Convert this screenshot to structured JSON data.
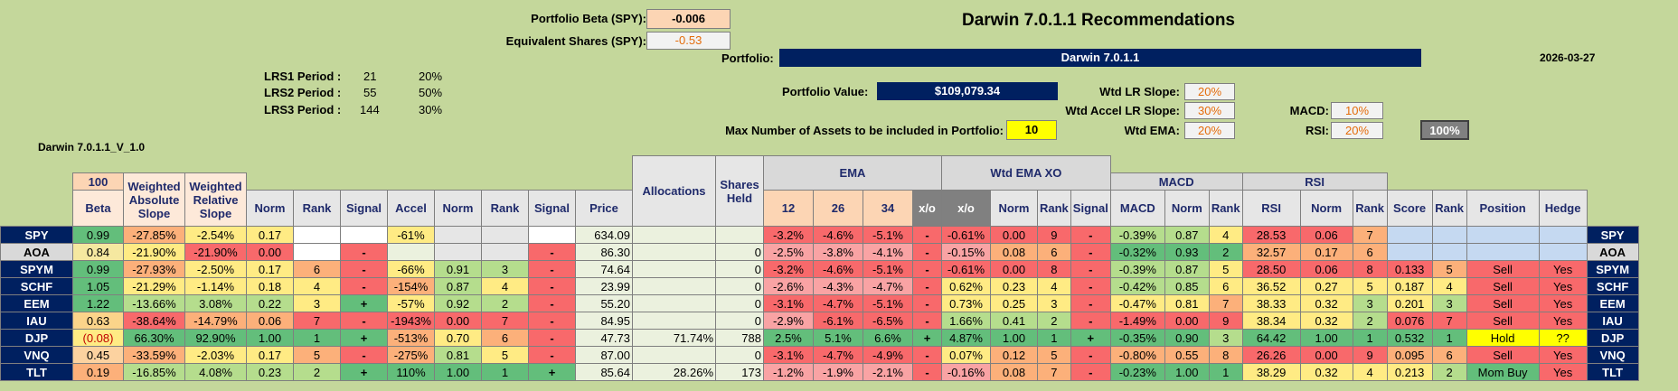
{
  "colors": {
    "background": "#c4d79b",
    "navy": "#002060",
    "yellow": "#ffff00",
    "green": "#63be7b",
    "red": "#f8696b",
    "orange_text": "#e46c0a"
  },
  "top": {
    "portfolio_beta_label": "Portfolio Beta (SPY):",
    "portfolio_beta_value": "-0.006",
    "equiv_shares_label": "Equivalent Shares (SPY):",
    "equiv_shares_value": "-0.53",
    "title": "Darwin 7.0.1.1 Recommendations",
    "portfolio_label": "Portfolio:",
    "portfolio_name": "Darwin 7.0.1.1",
    "date": "2026-03-27",
    "portfolio_value_label": "Portfolio Value:",
    "portfolio_value": "$109,079.34",
    "max_assets_label": "Max Number of Assets to be included in Portfolio:",
    "max_assets_value": "10",
    "version_label": "Darwin 7.0.1.1_V_1.0"
  },
  "lrs": [
    {
      "label": "LRS1 Period :",
      "period": "21",
      "pct": "20%"
    },
    {
      "label": "LRS2 Period :",
      "period": "55",
      "pct": "50%"
    },
    {
      "label": "LRS3 Period :",
      "period": "144",
      "pct": "30%"
    }
  ],
  "weights": {
    "wtd_lr_slope_label": "Wtd LR Slope:",
    "wtd_lr_slope": "20%",
    "wtd_accel_label": "Wtd Accel LR Slope:",
    "wtd_accel": "30%",
    "wtd_ema_label": "Wtd EMA:",
    "wtd_ema": "20%",
    "macd_label": "MACD:",
    "macd": "10%",
    "rsi_label": "RSI:",
    "rsi": "20%",
    "total": "100%"
  },
  "headers": {
    "beta_top": "100",
    "allocations": "Allocations",
    "shares_held": "Shares Held",
    "ema_group": "EMA",
    "wtd_ema_xo_group": "Wtd EMA XO",
    "macd_group": "MACD",
    "rsi_group": "RSI",
    "cols": [
      "Beta",
      "Weighted Absolute Slope",
      "Weighted Relative Slope",
      "Norm",
      "Rank",
      "Signal",
      "Accel",
      "Norm",
      "Rank",
      "Signal",
      "Price",
      "12",
      "26",
      "34",
      "x/o",
      "x/o",
      "Norm",
      "Rank",
      "Signal",
      "MACD",
      "Norm",
      "Rank",
      "RSI",
      "Norm",
      "Rank",
      "Score",
      "Rank",
      "Position",
      "Hedge"
    ]
  },
  "rows": [
    {
      "ticker": "SPY",
      "beta": "0.99",
      "was": "-27.85%",
      "wrs": "-2.54%",
      "norm": "0.17",
      "rank": "",
      "signal": "",
      "accel": "-61%",
      "anorm": "",
      "arank": "",
      "asignal": "",
      "price": "634.09",
      "alloc": "",
      "shares": "",
      "e12": "-3.2%",
      "e26": "-4.6%",
      "e34": "-5.1%",
      "exo": "-",
      "wxo": "-0.61%",
      "wnorm": "0.00",
      "wrank": "9",
      "wsignal": "-",
      "macd": "-0.39%",
      "mnorm": "0.87",
      "mrank": "4",
      "rsi": "28.53",
      "rnorm": "0.06",
      "rrank": "7",
      "score": "",
      "srank": "",
      "position": "",
      "hedge": ""
    },
    {
      "ticker": "AOA",
      "beta": "0.84",
      "was": "-21.90%",
      "wrs": "-21.90%",
      "norm": "0.00",
      "rank": "",
      "signal": "-",
      "accel": "",
      "anorm": "",
      "arank": "",
      "asignal": "-",
      "price": "86.30",
      "alloc": "",
      "shares": "0",
      "e12": "-2.5%",
      "e26": "-3.8%",
      "e34": "-4.1%",
      "exo": "-",
      "wxo": "-0.15%",
      "wnorm": "0.08",
      "wrank": "6",
      "wsignal": "-",
      "macd": "-0.32%",
      "mnorm": "0.93",
      "mrank": "2",
      "rsi": "32.57",
      "rnorm": "0.17",
      "rrank": "6",
      "score": "",
      "srank": "",
      "position": "",
      "hedge": ""
    },
    {
      "ticker": "SPYM",
      "beta": "0.99",
      "was": "-27.93%",
      "wrs": "-2.50%",
      "norm": "0.17",
      "rank": "6",
      "signal": "-",
      "accel": "-66%",
      "anorm": "0.91",
      "arank": "3",
      "asignal": "-",
      "price": "74.64",
      "alloc": "",
      "shares": "0",
      "e12": "-3.2%",
      "e26": "-4.6%",
      "e34": "-5.1%",
      "exo": "-",
      "wxo": "-0.61%",
      "wnorm": "0.00",
      "wrank": "8",
      "wsignal": "-",
      "macd": "-0.39%",
      "mnorm": "0.87",
      "mrank": "5",
      "rsi": "28.50",
      "rnorm": "0.06",
      "rrank": "8",
      "score": "0.133",
      "srank": "5",
      "position": "Sell",
      "hedge": "Yes"
    },
    {
      "ticker": "SCHF",
      "beta": "1.05",
      "was": "-21.29%",
      "wrs": "-1.14%",
      "norm": "0.18",
      "rank": "4",
      "signal": "-",
      "accel": "-154%",
      "anorm": "0.87",
      "arank": "4",
      "asignal": "-",
      "price": "23.99",
      "alloc": "",
      "shares": "0",
      "e12": "-2.6%",
      "e26": "-4.3%",
      "e34": "-4.7%",
      "exo": "-",
      "wxo": "0.62%",
      "wnorm": "0.23",
      "wrank": "4",
      "wsignal": "-",
      "macd": "-0.42%",
      "mnorm": "0.85",
      "mrank": "6",
      "rsi": "36.52",
      "rnorm": "0.27",
      "rrank": "5",
      "score": "0.187",
      "srank": "4",
      "position": "Sell",
      "hedge": "Yes"
    },
    {
      "ticker": "EEM",
      "beta": "1.22",
      "was": "-13.66%",
      "wrs": "3.08%",
      "norm": "0.22",
      "rank": "3",
      "signal": "+",
      "accel": "-57%",
      "anorm": "0.92",
      "arank": "2",
      "asignal": "-",
      "price": "55.20",
      "alloc": "",
      "shares": "0",
      "e12": "-3.1%",
      "e26": "-4.7%",
      "e34": "-5.1%",
      "exo": "-",
      "wxo": "0.73%",
      "wnorm": "0.25",
      "wrank": "3",
      "wsignal": "-",
      "macd": "-0.47%",
      "mnorm": "0.81",
      "mrank": "7",
      "rsi": "38.33",
      "rnorm": "0.32",
      "rrank": "3",
      "score": "0.201",
      "srank": "3",
      "position": "Sell",
      "hedge": "Yes"
    },
    {
      "ticker": "IAU",
      "beta": "0.63",
      "was": "-38.64%",
      "wrs": "-14.79%",
      "norm": "0.06",
      "rank": "7",
      "signal": "-",
      "accel": "-1943%",
      "anorm": "0.00",
      "arank": "7",
      "asignal": "-",
      "price": "84.95",
      "alloc": "",
      "shares": "0",
      "e12": "-2.9%",
      "e26": "-6.1%",
      "e34": "-6.5%",
      "exo": "-",
      "wxo": "1.66%",
      "wnorm": "0.41",
      "wrank": "2",
      "wsignal": "-",
      "macd": "-1.49%",
      "mnorm": "0.00",
      "mrank": "9",
      "rsi": "38.34",
      "rnorm": "0.32",
      "rrank": "2",
      "score": "0.076",
      "srank": "7",
      "position": "Sell",
      "hedge": "Yes"
    },
    {
      "ticker": "DJP",
      "beta": "(0.08)",
      "was": "66.30%",
      "wrs": "92.90%",
      "norm": "1.00",
      "rank": "1",
      "signal": "+",
      "accel": "-513%",
      "anorm": "0.70",
      "arank": "6",
      "asignal": "-",
      "price": "47.73",
      "alloc": "71.74%",
      "shares": "788",
      "e12": "2.5%",
      "e26": "5.1%",
      "e34": "6.6%",
      "exo": "+",
      "wxo": "4.87%",
      "wnorm": "1.00",
      "wrank": "1",
      "wsignal": "+",
      "macd": "-0.35%",
      "mnorm": "0.90",
      "mrank": "3",
      "rsi": "64.42",
      "rnorm": "1.00",
      "rrank": "1",
      "score": "0.532",
      "srank": "1",
      "position": "Hold",
      "hedge": "??"
    },
    {
      "ticker": "VNQ",
      "beta": "0.45",
      "was": "-33.59%",
      "wrs": "-2.03%",
      "norm": "0.17",
      "rank": "5",
      "signal": "-",
      "accel": "-275%",
      "anorm": "0.81",
      "arank": "5",
      "asignal": "-",
      "price": "87.00",
      "alloc": "",
      "shares": "0",
      "e12": "-3.1%",
      "e26": "-4.7%",
      "e34": "-4.9%",
      "exo": "-",
      "wxo": "0.07%",
      "wnorm": "0.12",
      "wrank": "5",
      "wsignal": "-",
      "macd": "-0.80%",
      "mnorm": "0.55",
      "mrank": "8",
      "rsi": "26.26",
      "rnorm": "0.00",
      "rrank": "9",
      "score": "0.095",
      "srank": "6",
      "position": "Sell",
      "hedge": "Yes"
    },
    {
      "ticker": "TLT",
      "beta": "0.19",
      "was": "-16.85%",
      "wrs": "4.08%",
      "norm": "0.23",
      "rank": "2",
      "signal": "+",
      "accel": "110%",
      "anorm": "1.00",
      "arank": "1",
      "asignal": "+",
      "price": "85.64",
      "alloc": "28.26%",
      "shares": "173",
      "e12": "-1.2%",
      "e26": "-1.9%",
      "e34": "-2.1%",
      "exo": "-",
      "wxo": "-0.16%",
      "wnorm": "0.08",
      "wrank": "7",
      "wsignal": "-",
      "macd": "-0.23%",
      "mnorm": "1.00",
      "mrank": "1",
      "rsi": "38.29",
      "rnorm": "0.32",
      "rrank": "4",
      "score": "0.213",
      "srank": "2",
      "position": "Mom Buy",
      "hedge": "Yes"
    }
  ]
}
